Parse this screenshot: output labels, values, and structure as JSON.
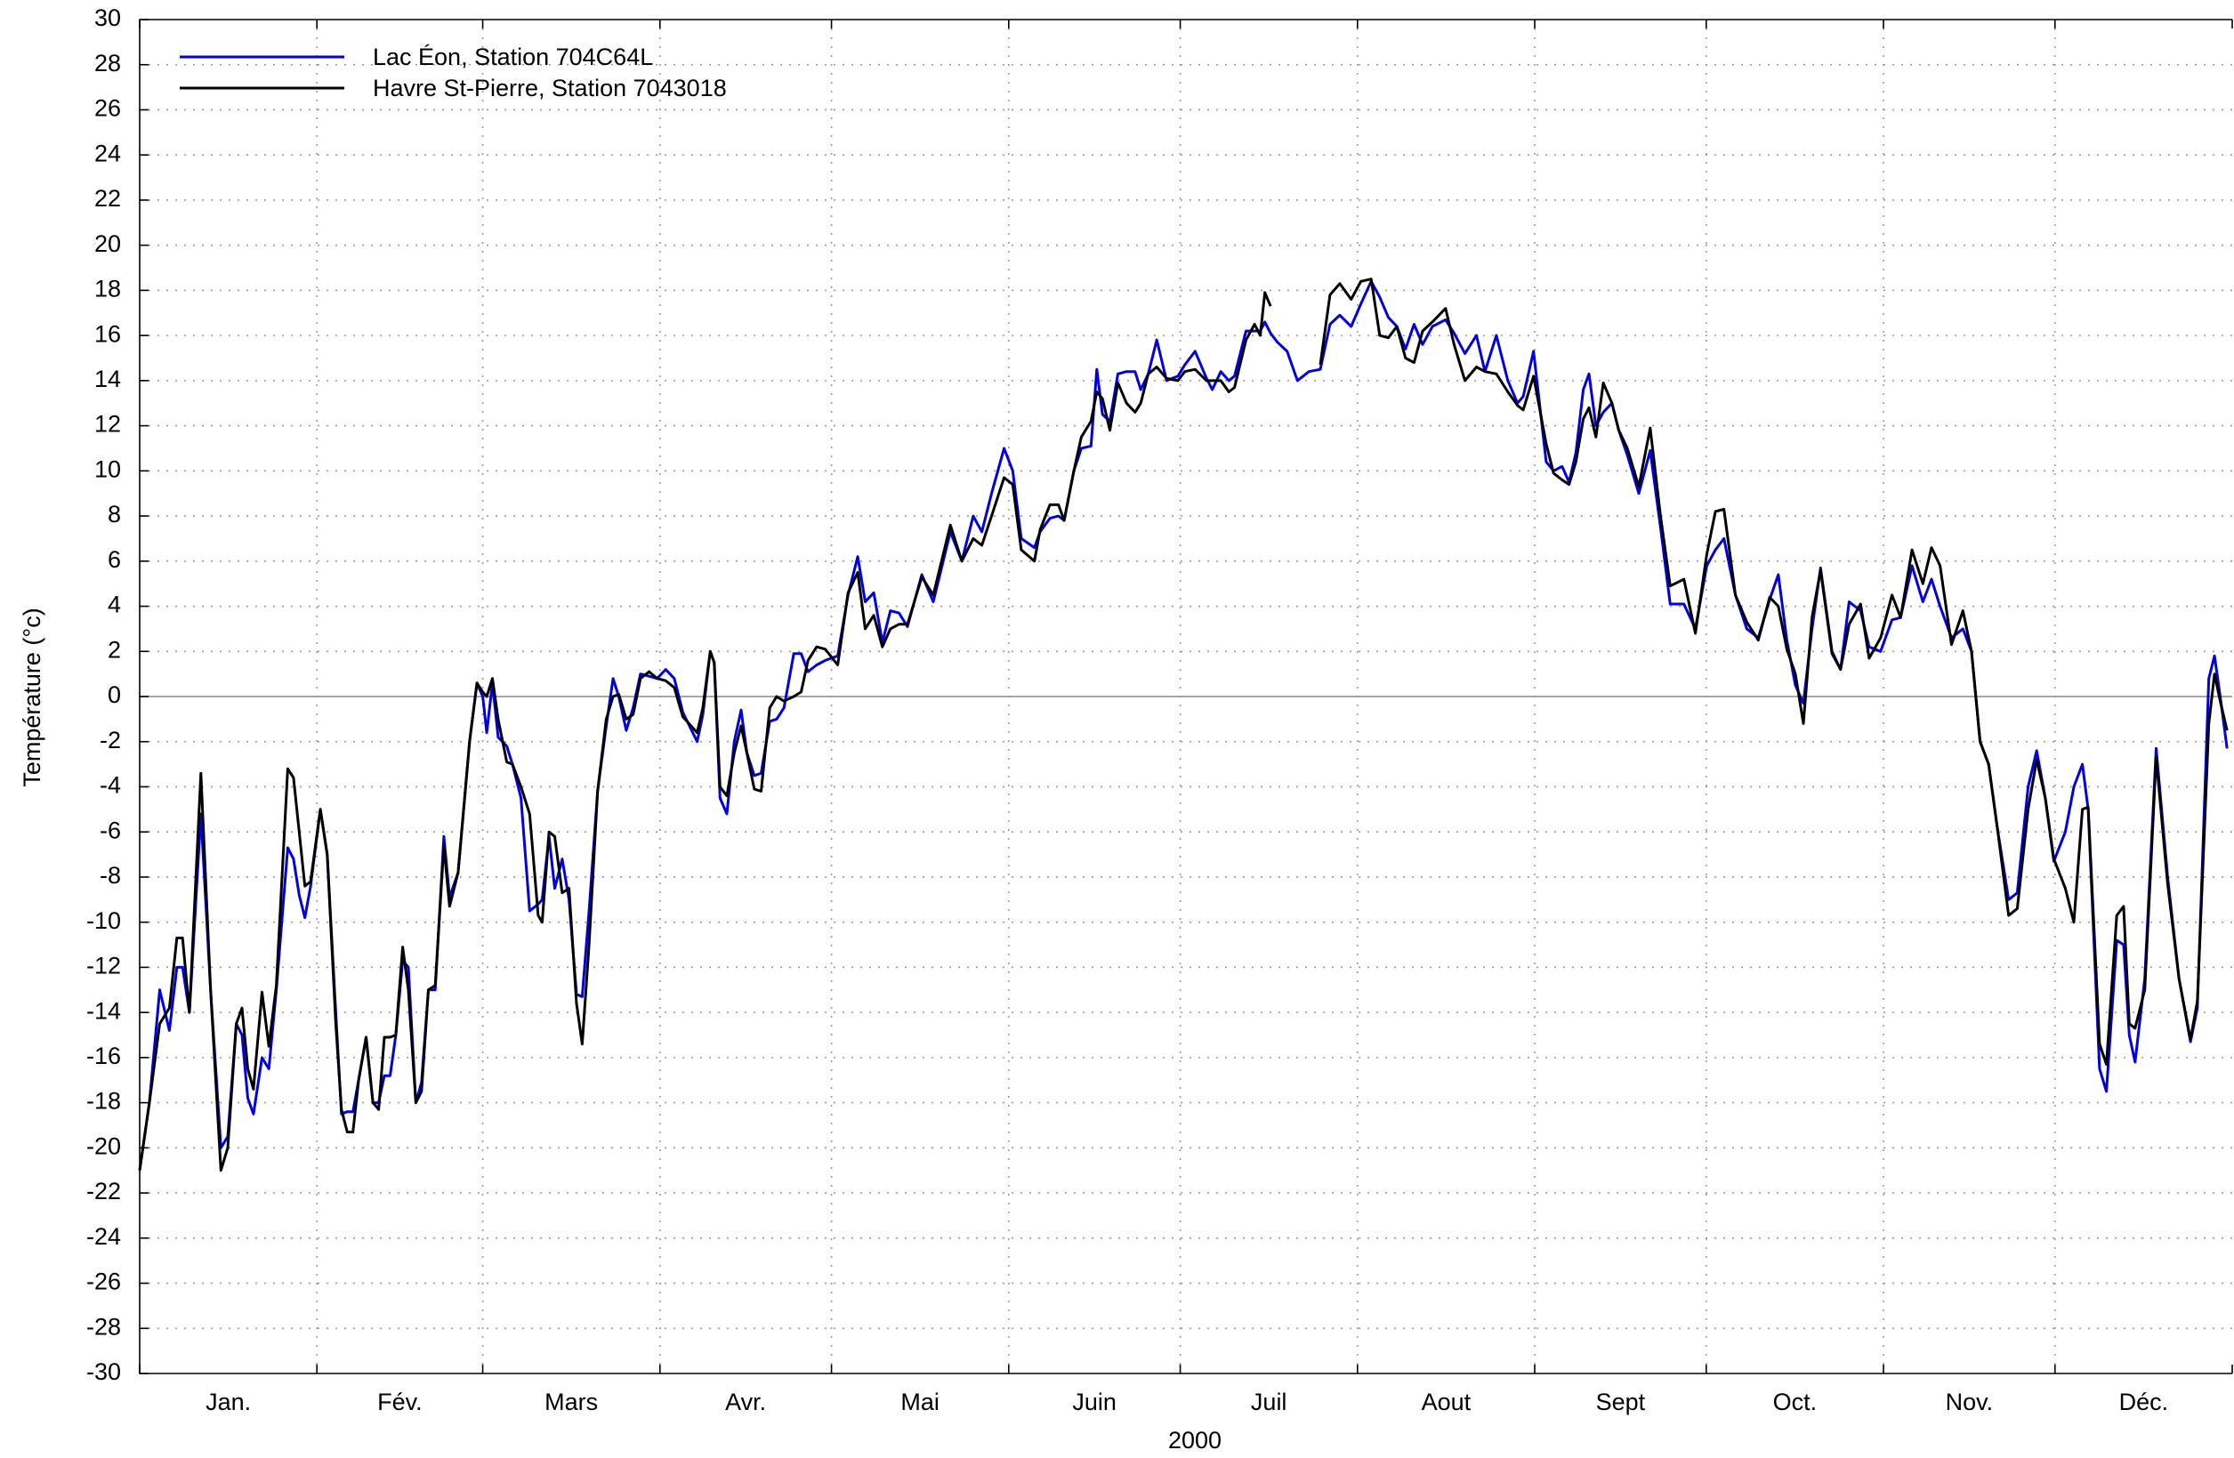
{
  "chart_data": {
    "type": "line",
    "x_label": "2000",
    "y_label": "Température (°c)",
    "months": [
      "Jan.",
      "Fév.",
      "Mars",
      "Avr.",
      "Mai",
      "Juin",
      "Juil",
      "Aout",
      "Sept",
      "Oct.",
      "Nov.",
      "Déc."
    ],
    "xlim": [
      0,
      366
    ],
    "xticks": [
      0,
      31,
      60,
      91,
      121,
      152,
      182,
      213,
      244,
      274,
      305,
      335,
      366
    ],
    "ylim": [
      -30,
      30
    ],
    "yticks": [
      -30,
      -28,
      -26,
      -24,
      -22,
      -20,
      -18,
      -16,
      -14,
      -12,
      -10,
      -8,
      -6,
      -4,
      -2,
      0,
      2,
      4,
      6,
      8,
      10,
      12,
      14,
      16,
      18,
      20,
      22,
      24,
      26,
      28,
      30
    ],
    "grid": true,
    "legend": "top-left",
    "x": [
      0,
      1.7,
      3.5,
      5.2,
      6.5,
      7.5,
      8.7,
      10.7,
      12.4,
      14.2,
      15.4,
      16.9,
      17.9,
      18.9,
      19.9,
      21.4,
      22.6,
      23.9,
      25.9,
      26.9,
      27.9,
      28.9,
      29.9,
      31.6,
      32.8,
      34.3,
      35.3,
      36.3,
      37.3,
      38.3,
      39.6,
      40.8,
      41.8,
      42.8,
      43.8,
      44.8,
      46,
      47,
      48.3,
      49.3,
      50.5,
      51.7,
      53.2,
      54.2,
      55.7,
      57.7,
      59,
      60,
      60.7,
      61.7,
      62.7,
      64.2,
      65.2,
      66.7,
      68.2,
      69.7,
      70.4,
      71.6,
      72.6,
      73.9,
      75.1,
      76.4,
      77.4,
      78.6,
      80.1,
      81.6,
      82.8,
      83.8,
      85.1,
      86.3,
      87.6,
      89.1,
      90.5,
      92,
      93.5,
      95,
      97.5,
      98.5,
      99.8,
      100.5,
      101.5,
      102.7,
      104,
      105.2,
      106.2,
      107.5,
      108.7,
      110.2,
      111.4,
      112.7,
      114.4,
      115.7,
      116.9,
      118.4,
      119.9,
      122.1,
      123.9,
      125.6,
      126.9,
      128.4,
      129.9,
      131.3,
      132.8,
      134.3,
      136.8,
      138.8,
      141.8,
      143.8,
      145.8,
      147.3,
      149,
      151.2,
      152.7,
      154.2,
      156.5,
      157.5,
      159.2,
      160.7,
      161.7,
      163.4,
      164.7,
      166.4,
      167.4,
      168.4,
      169.7,
      171.1,
      172.6,
      174.1,
      175.1,
      176.4,
      177.9,
      179.6,
      181.6,
      182.8,
      184.6,
      186.6,
      187.6,
      189.1,
      190.5,
      191.5,
      193.5,
      195,
      196,
      196.8,
      197.8,
      199,
      200.7,
      202.5,
      204.5,
      206.5,
      208.2,
      209.9,
      211.9,
      213.6,
      215.4,
      216.9,
      218.4,
      219.9,
      221.4,
      222.9,
      224.4,
      226.1,
      228.4,
      229.9,
      231.8,
      233.8,
      235.3,
      237.3,
      239.3,
      241,
      242,
      243.8,
      246,
      247.3,
      248.8,
      250,
      251.2,
      252.5,
      253.5,
      254.7,
      256,
      257.5,
      258.7,
      260.2,
      262.2,
      264.2,
      266,
      267.7,
      270.1,
      272.1,
      274.1,
      275.6,
      277.1,
      279.1,
      281.1,
      283.1,
      285.1,
      286.6,
      288.1,
      289.6,
      291,
      292.5,
      294,
      296,
      297.5,
      299,
      301,
      302.5,
      304.5,
      306.5,
      308,
      310,
      311.9,
      313.4,
      314.9,
      316.9,
      318.9,
      320.4,
      321.9,
      323.4,
      324.9,
      326.9,
      328.4,
      330.3,
      331.8,
      333.3,
      334.8,
      336.8,
      338.3,
      339.8,
      340.8,
      342.8,
      344,
      345.8,
      347,
      348,
      349,
      350.7,
      352.7,
      354.7,
      356.7,
      358.7,
      359.9,
      361.9,
      362.9,
      363.9,
      365.1
    ],
    "series": [
      {
        "name": "Lac Éon, Station 704C64L",
        "color": "#0000e0",
        "values": [
          -21,
          -18,
          -13,
          -14.8,
          -12,
          -12,
          -14,
          -5.2,
          -13,
          -20,
          -19.5,
          -14.5,
          -15,
          -17.8,
          -18.5,
          -16,
          -16.5,
          -13,
          -6.7,
          -7.2,
          -8.8,
          -9.8,
          -8.4,
          -5,
          -7,
          -14,
          -18.5,
          -18.4,
          -18.4,
          -17,
          -15.1,
          -18,
          -18,
          -16.8,
          -16.8,
          -15,
          -11.7,
          -12,
          -18,
          -17.1,
          -13,
          -13,
          -6.2,
          -8.9,
          -7.8,
          -2,
          0.6,
          0,
          -1.6,
          0.6,
          -1.8,
          -2.2,
          -3,
          -4.5,
          -9.5,
          -9.2,
          -9,
          -6.2,
          -8.5,
          -7.2,
          -9,
          -13.2,
          -13.3,
          -9.5,
          -4.2,
          -1.3,
          0.8,
          0,
          -1.5,
          -0.5,
          1,
          0.9,
          0.8,
          1.2,
          0.8,
          -0.7,
          -2,
          -0.8,
          2,
          1.5,
          -4.5,
          -5.2,
          -2,
          -0.6,
          -2.5,
          -3.5,
          -3.4,
          -1.1,
          -1,
          -0.5,
          1.9,
          1.9,
          1.1,
          1.4,
          1.6,
          1.8,
          4.5,
          6.2,
          4.2,
          4.6,
          2.4,
          3.8,
          3.7,
          3.1,
          5.4,
          4.2,
          7.3,
          6,
          8,
          7.3,
          9,
          11,
          10,
          7,
          6.6,
          7.3,
          7.9,
          8,
          7.8,
          10,
          11,
          11.1,
          14.5,
          12.5,
          12.2,
          14.3,
          14.4,
          14.4,
          13.6,
          14.3,
          15.8,
          14,
          14.2,
          14.7,
          15.3,
          14.1,
          13.6,
          14.4,
          14,
          14.2,
          16.2,
          16.2,
          16.2,
          16.6,
          16.1,
          15.7,
          15.3,
          14,
          14.4,
          14.5,
          16.5,
          16.9,
          16.4,
          17.4,
          18.4,
          17.7,
          16.8,
          16.4,
          15.4,
          16.5,
          15.6,
          16.4,
          16.7,
          16.1,
          15.2,
          16,
          14.4,
          16,
          14,
          13,
          13.3,
          15.3,
          10.4,
          10,
          10.2,
          9.5,
          10.8,
          13.6,
          14.3,
          12,
          12.6,
          13,
          11.8,
          10.7,
          9,
          10.9,
          7.5,
          4.1,
          4.1,
          3,
          5.8,
          6.5,
          7,
          4.5,
          3,
          2.6,
          4.3,
          5.4,
          2.5,
          0.5,
          -0.3,
          3,
          5.7,
          2,
          1.2,
          4.2,
          3.8,
          2.2,
          2,
          3.4,
          3.5,
          5.8,
          4.2,
          5.2,
          4,
          2.6,
          3,
          2,
          -2,
          -3,
          -5.8,
          -9,
          -8.7,
          -4,
          -2.4,
          -4.5,
          -7.3,
          -6,
          -4,
          -3,
          -5,
          -16.5,
          -17.5,
          -10.8,
          -11,
          -15,
          -16.2,
          -12.5,
          -2.3,
          -8,
          -12.5,
          -15.3,
          -13.8,
          0.8,
          1.8,
          0,
          -2.3
        ]
      },
      {
        "name": "Havre St-Pierre,  Station 7043018",
        "color": "#000000",
        "values": [
          -21,
          -18,
          -14.5,
          -13.8,
          -10.7,
          -10.7,
          -14,
          -3.4,
          -13,
          -21,
          -20,
          -14.5,
          -13.8,
          -16.5,
          -17.4,
          -13.1,
          -15.5,
          -12.8,
          -3.2,
          -3.6,
          -6,
          -8.4,
          -8.2,
          -5,
          -7,
          -14.5,
          -18.3,
          -19.3,
          -19.3,
          -17,
          -15.1,
          -18,
          -18.3,
          -15.1,
          -15.1,
          -15,
          -11.1,
          -13,
          -18,
          -17.5,
          -13,
          -12.8,
          -6.6,
          -9.3,
          -7.8,
          -2,
          0.6,
          0.2,
          0,
          0.8,
          -1,
          -2.9,
          -3,
          -4,
          -5.2,
          -9.7,
          -10,
          -6,
          -6.2,
          -8.7,
          -8.5,
          -13.6,
          -15.4,
          -11,
          -4.2,
          -1,
          0,
          0.1,
          -1,
          -0.8,
          0.8,
          1.1,
          0.8,
          0.7,
          0.4,
          -0.9,
          -1.6,
          -0.5,
          2,
          1.5,
          -4,
          -4.4,
          -2.5,
          -1.3,
          -2.5,
          -4.1,
          -4.2,
          -0.5,
          0,
          -0.2,
          0,
          0.2,
          1.6,
          2.2,
          2.1,
          1.4,
          4.6,
          5.5,
          3,
          3.6,
          2.2,
          3,
          3.2,
          3.2,
          5.3,
          4.5,
          7.6,
          6,
          7,
          6.7,
          8,
          9.7,
          9.4,
          6.5,
          6,
          7.4,
          8.5,
          8.5,
          7.8,
          10,
          11.5,
          12.2,
          13.5,
          13.2,
          11.8,
          13.9,
          13,
          12.6,
          13,
          14.3,
          14.6,
          14.1,
          14,
          14.4,
          14.5,
          14,
          14,
          14,
          13.5,
          13.7,
          15.8,
          16.5,
          16,
          17.9,
          17.3,
          null,
          null,
          null,
          null,
          14.7,
          17.8,
          18.3,
          17.6,
          18.4,
          18.5,
          16,
          15.9,
          16.4,
          15,
          14.8,
          16.2,
          16.6,
          17.2,
          15.6,
          14,
          14.6,
          14.4,
          14.3,
          13.5,
          12.9,
          12.7,
          14.2,
          11.2,
          9.9,
          9.6,
          9.4,
          10.4,
          12.3,
          12.8,
          11.5,
          13.9,
          13,
          11.8,
          11,
          9.3,
          11.9,
          8,
          4.9,
          5.2,
          2.8,
          6.3,
          8.2,
          8.3,
          4.5,
          3.3,
          2.5,
          4.4,
          4,
          2.1,
          1,
          -1.2,
          3.5,
          5.6,
          1.9,
          1.2,
          3.2,
          4.1,
          1.7,
          2.6,
          4.5,
          3.5,
          6.5,
          5,
          6.6,
          5.8,
          2.3,
          3.8,
          2,
          -2,
          -3,
          -5.8,
          -9.7,
          -9.4,
          -5,
          -2.8,
          -4.5,
          -7.2,
          -8.5,
          -10,
          -5,
          -4.9,
          -15.4,
          -16.3,
          -9.7,
          -9.3,
          -14.5,
          -14.7,
          -13,
          -2.7,
          -8.3,
          -12.5,
          -15.2,
          -13.5,
          -1.2,
          1,
          -0.2,
          -1.5
        ]
      }
    ]
  }
}
